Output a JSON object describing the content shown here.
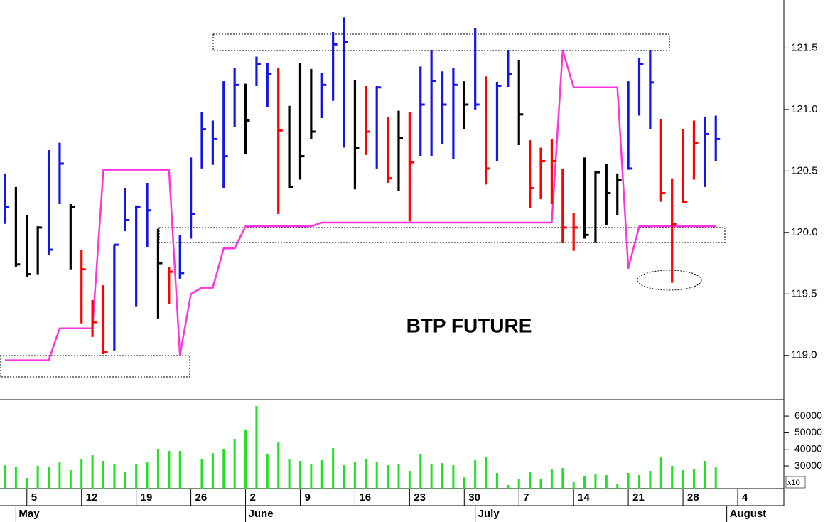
{
  "chart_data": {
    "type": "ohlc",
    "title": "BTP FUTURE",
    "categories": [
      null,
      null,
      "5",
      null,
      null,
      null,
      null,
      "12",
      null,
      null,
      null,
      null,
      "19",
      null,
      null,
      null,
      null,
      "26",
      null,
      null,
      null,
      null,
      "2",
      null,
      null,
      null,
      null,
      "9",
      null,
      null,
      null,
      null,
      "16",
      null,
      null,
      null,
      null,
      "23",
      null,
      null,
      null,
      null,
      "30",
      null,
      null,
      null,
      null,
      "7",
      null,
      null,
      null,
      null,
      "14",
      null,
      null,
      null,
      null,
      "21",
      null,
      null,
      null,
      null,
      "28",
      null,
      null,
      null,
      null,
      "4"
    ],
    "month_labels": [
      null,
      "May",
      null,
      null,
      null,
      null,
      null,
      null,
      null,
      null,
      null,
      null,
      null,
      null,
      null,
      null,
      null,
      null,
      null,
      null,
      null,
      null,
      "June",
      null,
      null,
      null,
      null,
      null,
      null,
      null,
      null,
      null,
      null,
      null,
      null,
      null,
      null,
      null,
      null,
      null,
      null,
      null,
      null,
      "July",
      null,
      null,
      null,
      null,
      null,
      null,
      null,
      null,
      null,
      null,
      null,
      null,
      null,
      null,
      null,
      null,
      null,
      null,
      null,
      null,
      null,
      null,
      "August",
      null
    ],
    "high": [
      120.48,
      120.37,
      120.14,
      120.05,
      120.67,
      120.73,
      120.23,
      119.86,
      119.45,
      119.57,
      119.9,
      120.36,
      120.22,
      120.4,
      120.03,
      119.72,
      119.98,
      120.61,
      120.98,
      120.91,
      121.23,
      121.34,
      121.21,
      121.43,
      121.38,
      121.34,
      121.03,
      121.38,
      121.33,
      121.3,
      121.63,
      121.75,
      121.24,
      121.19,
      121.19,
      120.94,
      120.99,
      120.98,
      121.35,
      121.48,
      121.31,
      121.34,
      121.23,
      121.66,
      121.27,
      121.22,
      121.48,
      121.4,
      120.75,
      120.69,
      120.76,
      120.52,
      120.16,
      120.61,
      120.5,
      120.56,
      120.48,
      121.23,
      121.42,
      121.48,
      120.92,
      120.44,
      120.84,
      120.91,
      120.94,
      120.95,
      null,
      null
    ],
    "low": [
      120.07,
      119.72,
      119.64,
      119.66,
      119.82,
      120.23,
      119.7,
      119.26,
      119.15,
      119.01,
      119.04,
      120.01,
      119.4,
      119.88,
      119.3,
      119.42,
      119.62,
      119.95,
      120.52,
      120.55,
      120.36,
      120.86,
      120.64,
      121.19,
      121.02,
      120.15,
      120.36,
      120.43,
      120.76,
      120.93,
      121.07,
      120.69,
      120.35,
      120.63,
      120.52,
      120.4,
      120.34,
      120.09,
      120.62,
      120.62,
      120.72,
      120.6,
      120.84,
      121.0,
      120.39,
      120.58,
      121.18,
      120.71,
      120.2,
      120.27,
      120.23,
      119.92,
      119.85,
      119.95,
      119.92,
      120.06,
      120.14,
      120.51,
      120.95,
      120.84,
      120.25,
      119.59,
      120.24,
      120.43,
      120.37,
      120.58,
      null,
      null
    ],
    "close": [
      120.21,
      119.74,
      119.66,
      120.04,
      119.86,
      120.56,
      120.21,
      119.7,
      119.27,
      119.03,
      119.9,
      120.1,
      120.21,
      120.18,
      119.75,
      119.68,
      119.67,
      120.15,
      120.84,
      120.76,
      120.62,
      121.2,
      120.91,
      121.37,
      121.29,
      120.83,
      120.37,
      120.62,
      120.82,
      121.2,
      121.53,
      121.55,
      120.69,
      120.82,
      121.18,
      120.44,
      120.77,
      120.57,
      121.04,
      121.23,
      121.04,
      121.2,
      121.04,
      121.04,
      120.52,
      121.19,
      121.29,
      120.96,
      120.36,
      120.58,
      120.58,
      120.04,
      120.04,
      119.98,
      120.49,
      120.32,
      120.43,
      120.52,
      121.37,
      121.22,
      120.32,
      120.07,
      120.25,
      120.73,
      120.8,
      120.76,
      null,
      null
    ],
    "bar_colors": [
      "#1515e6",
      "#000000",
      "#000000",
      "#000000",
      "#1515e6",
      "#1515e6",
      "#000000",
      "#ff0000",
      "#ff0000",
      "#ff0000",
      "#1515e6",
      "#1515e6",
      "#1515e6",
      "#1515e6",
      "#000000",
      "#ff0000",
      "#1515e6",
      "#1515e6",
      "#1515e6",
      "#1515e6",
      "#1515e6",
      "#1515e6",
      "#000000",
      "#1515e6",
      "#1515e6",
      "#ff0000",
      "#000000",
      "#000000",
      "#000000",
      "#1515e6",
      "#1515e6",
      "#1515e6",
      "#000000",
      "#ff0000",
      "#1515e6",
      "#ff0000",
      "#000000",
      "#ff0000",
      "#1515e6",
      "#1515e6",
      "#1515e6",
      "#1515e6",
      "#000000",
      "#1515e6",
      "#ff0000",
      "#1515e6",
      "#1515e6",
      "#000000",
      "#ff0000",
      "#ff0000",
      "#ff0000",
      "#ff0000",
      "#ff0000",
      "#000000",
      "#000000",
      "#000000",
      "#000000",
      "#1515e6",
      "#1515e6",
      "#1515e6",
      "#ff0000",
      "#ff0000",
      "#ff0000",
      "#ff0000",
      "#1515e6",
      "#1515e6",
      null,
      null
    ],
    "line": {
      "color": "#ff33dd",
      "values": [
        118.96,
        118.96,
        118.96,
        118.96,
        118.96,
        119.22,
        119.22,
        119.22,
        119.22,
        120.51,
        120.51,
        120.51,
        120.51,
        120.51,
        120.51,
        120.51,
        119.0,
        119.5,
        119.55,
        119.55,
        119.87,
        119.87,
        120.05,
        120.05,
        120.05,
        120.05,
        120.05,
        120.05,
        120.05,
        120.08,
        120.08,
        120.08,
        120.08,
        120.08,
        120.08,
        120.08,
        120.08,
        120.08,
        120.08,
        120.08,
        120.08,
        120.08,
        120.08,
        120.08,
        120.08,
        120.08,
        120.08,
        120.08,
        120.08,
        120.08,
        120.08,
        121.48,
        121.18,
        121.18,
        121.18,
        121.18,
        121.18,
        119.71,
        120.05,
        120.05,
        120.05,
        120.05,
        120.05,
        120.05,
        120.05,
        120.05,
        null,
        null
      ]
    },
    "ylim": [
      118.64,
      121.89
    ],
    "yticks": [
      {
        "value": 119,
        "label": "119.0"
      },
      119.5,
      {
        "value": 120,
        "label": "120.0"
      },
      120.5,
      {
        "value": 121,
        "label": "121.0"
      },
      121.5
    ],
    "volume": {
      "type": "bar",
      "color": "#22e022",
      "values": [
        30400,
        29600,
        22700,
        30000,
        29100,
        32100,
        27400,
        33900,
        36400,
        33000,
        31300,
        26100,
        31300,
        32100,
        40300,
        39000,
        39000,
        null,
        34300,
        37700,
        39900,
        46300,
        51900,
        66000,
        37300,
        44100,
        33900,
        33000,
        31300,
        33400,
        40700,
        30400,
        32600,
        34300,
        32600,
        30400,
        30900,
        27000,
        36900,
        31300,
        31700,
        30400,
        23100,
        33400,
        35600,
        25700,
        18400,
        22300,
        26100,
        21900,
        27900,
        28700,
        20100,
        23600,
        25300,
        24400,
        18900,
        25700,
        24400,
        27000,
        35100,
        30000,
        27400,
        28300,
        33000,
        29100,
        null,
        null
      ],
      "ylim": [
        16300,
        69900
      ],
      "yticks": [
        30000,
        40000,
        50000,
        60000
      ],
      "scale_label": "x10"
    }
  }
}
